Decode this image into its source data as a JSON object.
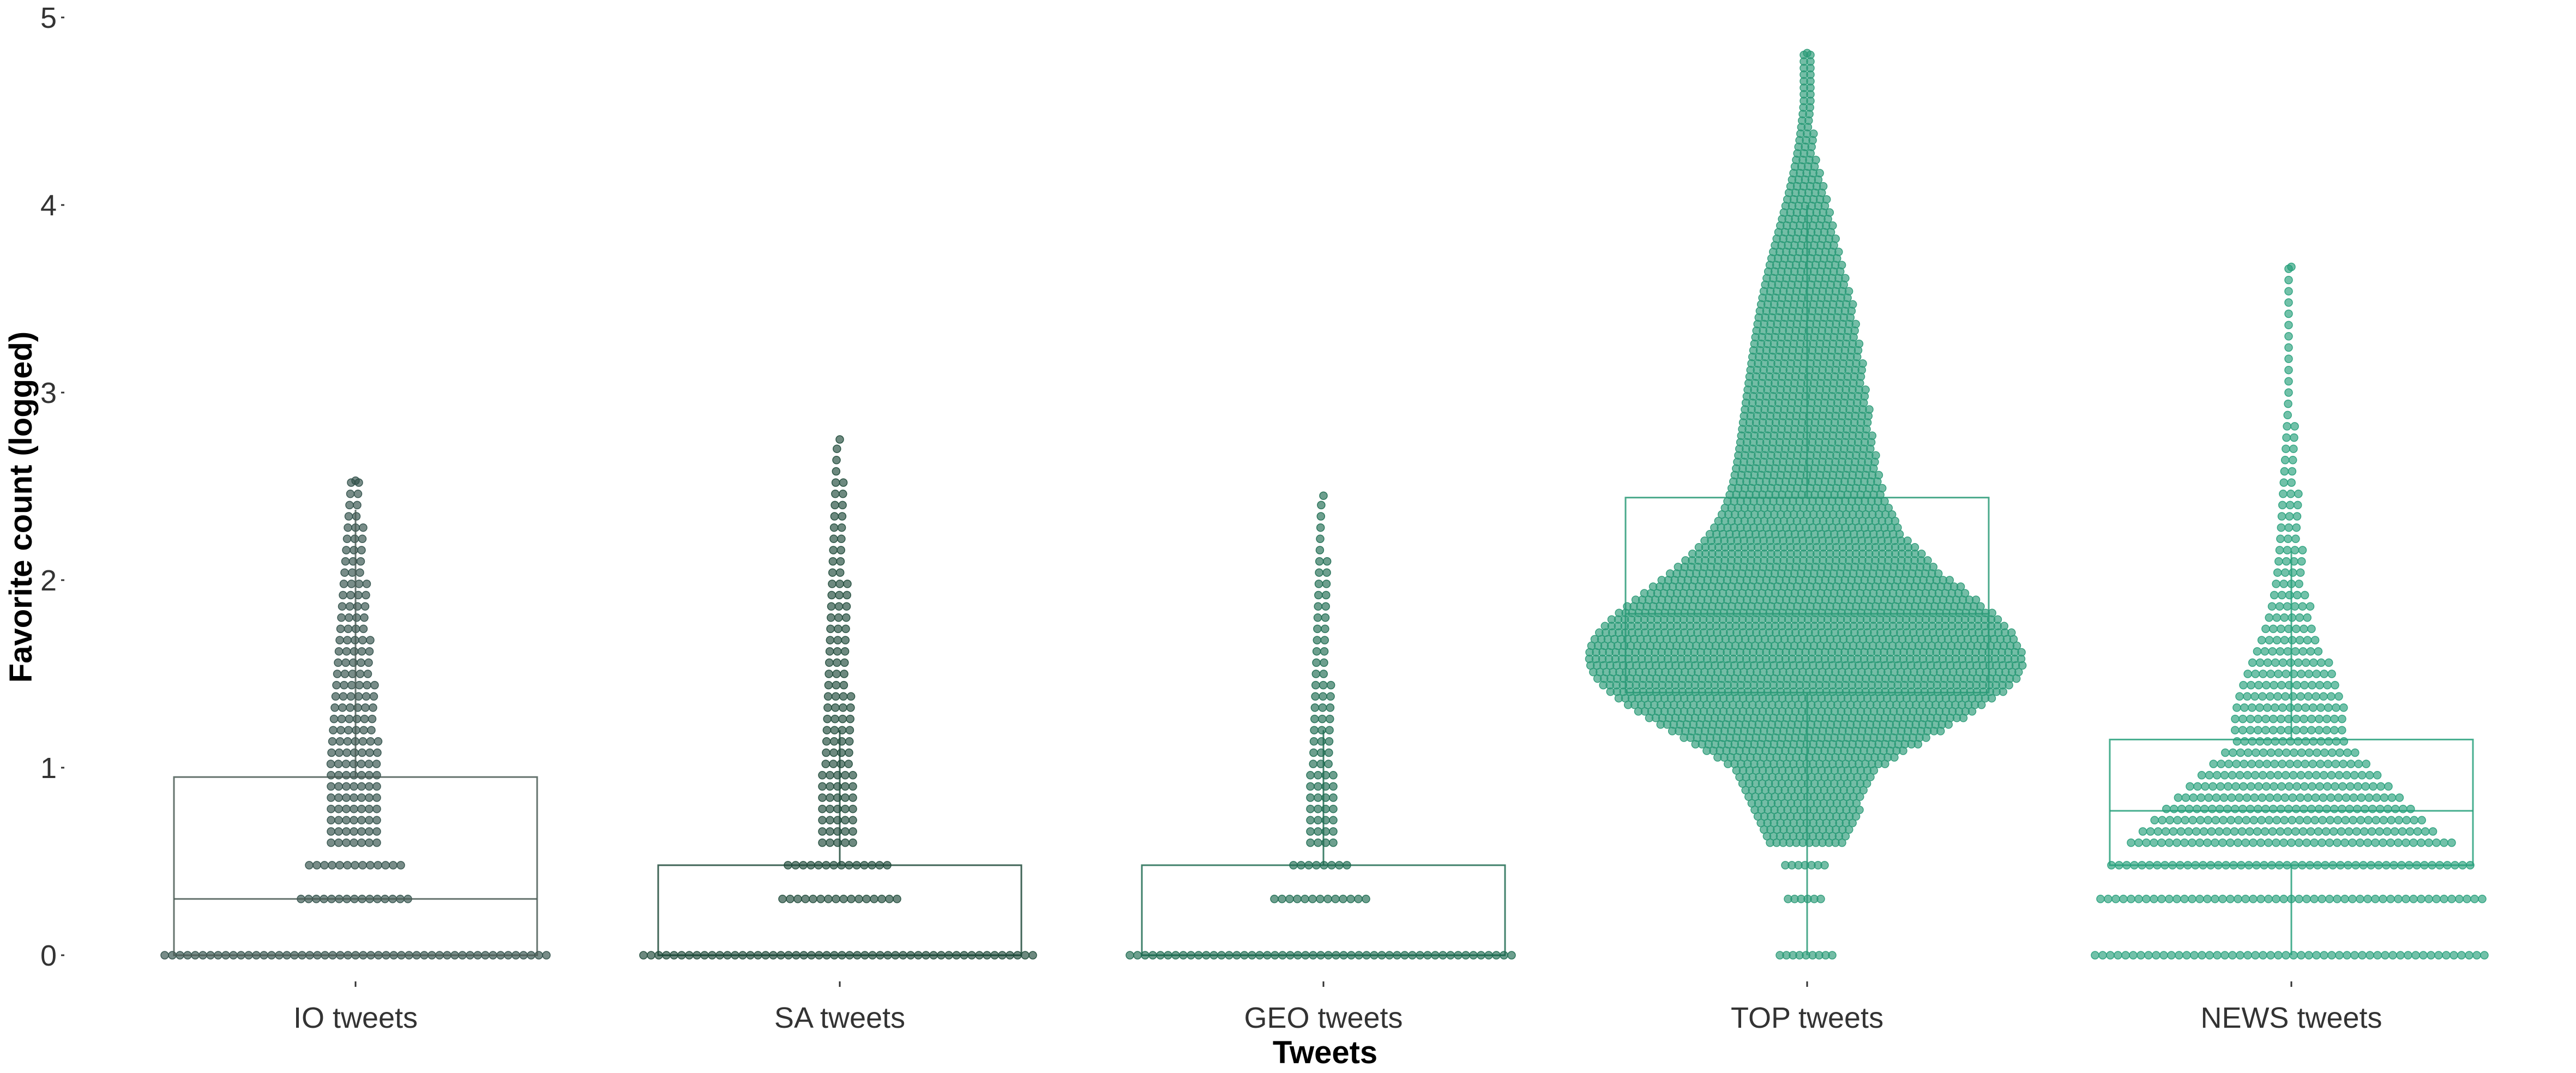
{
  "chart_data": {
    "type": "beeswarm-boxplot",
    "title": "",
    "xlabel": "Tweets",
    "ylabel": "Favorite count (logged)",
    "ylim": [
      0,
      5
    ],
    "yticks": [
      0,
      1,
      2,
      3,
      4,
      5
    ],
    "grid": false,
    "legend": "none",
    "categories": [
      "IO tweets",
      "SA tweets",
      "GEO tweets",
      "TOP tweets",
      "NEWS tweets"
    ],
    "series": [
      {
        "category": "IO tweets",
        "color": "#2f4f48",
        "box": {
          "q1": 0,
          "median": 0.3,
          "q3": 0.95,
          "whisker_low": 0,
          "whisker_high": 2.53
        },
        "max": 2.53
      },
      {
        "category": "SA tweets",
        "color": "#1f4a3a",
        "box": {
          "q1": 0,
          "median": 0,
          "q3": 0.48,
          "whisker_low": 0,
          "whisker_high": 2.75
        },
        "max": 2.75
      },
      {
        "category": "GEO tweets",
        "color": "#1e6b51",
        "box": {
          "q1": 0,
          "median": 0,
          "q3": 0.48,
          "whisker_low": 0,
          "whisker_high": 2.45
        },
        "max": 2.45
      },
      {
        "category": "TOP tweets",
        "color": "#2a9a77",
        "box": {
          "q1": 1.4,
          "median": 1.82,
          "q3": 2.44,
          "whisker_low": 0,
          "whisker_high": 4.81
        },
        "max": 4.81
      },
      {
        "category": "NEWS tweets",
        "color": "#27a07b",
        "box": {
          "q1": 0.48,
          "median": 0.77,
          "q3": 1.15,
          "whisker_low": 0,
          "whisker_high": 3.67
        },
        "max": 3.67
      }
    ]
  }
}
